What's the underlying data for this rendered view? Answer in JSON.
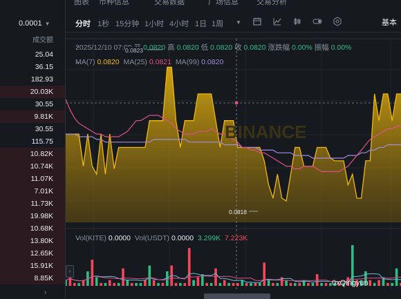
{
  "left_panel": {
    "price_select": "0.0001",
    "column_header": "成交额",
    "volumes": [
      {
        "v": "25.04",
        "red": false
      },
      {
        "v": "36.15",
        "red": false
      },
      {
        "v": "182.93",
        "red": false
      },
      {
        "v": "20.03K",
        "red": true
      },
      {
        "v": "30.55",
        "red": false
      },
      {
        "v": "9.81K",
        "red": true
      },
      {
        "v": "30.55",
        "red": false
      },
      {
        "v": "115.75",
        "red": false
      },
      {
        "v": "10.82K",
        "red": true
      },
      {
        "v": "10.74K",
        "red": true
      },
      {
        "v": "11.07K",
        "red": true
      },
      {
        "v": "7.01K",
        "red": true
      },
      {
        "v": "11.73K",
        "red": true
      },
      {
        "v": "19.98K",
        "red": true
      },
      {
        "v": "10.68K",
        "red": true
      },
      {
        "v": "13.80K",
        "red": true
      },
      {
        "v": "12.65K",
        "red": true
      },
      {
        "v": "15.91K",
        "red": true
      },
      {
        "v": "8.85K",
        "red": true
      }
    ]
  },
  "timeframes": [
    "分时",
    "1秒",
    "15分钟",
    "1小时",
    "4小时",
    "1日",
    "1周"
  ],
  "basic_label": "基本",
  "ohlc": {
    "datetime": "2025/12/10 07:09",
    "open_label": "开",
    "open": "0.0820",
    "high_label": "高",
    "high": "0.0820",
    "low_label": "低",
    "low": "0.0820",
    "close_label": "收",
    "close": "0.0820",
    "change_label": "涨跌幅",
    "change": "0.00%",
    "amp_label": "振幅",
    "amp": "0.00%"
  },
  "ma": {
    "ma7_label": "MA(7)",
    "ma7": "0.0820",
    "ma25_label": "MA(25)",
    "ma25": "0.0821",
    "ma99_label": "MA(99)",
    "ma99": "0.0820"
  },
  "high_marker": "0.0823",
  "low_marker": "0.0818",
  "volume": {
    "kite_label": "Vol(KITE)",
    "kite": "0.0000",
    "usdt_label": "Vol(USDT)",
    "usdt": "0.0000",
    "ma_a": "3.299K",
    "ma_b": "7.223K"
  },
  "watermark": "0xQingyun",
  "colors": {
    "accent": "#f0b90b",
    "up": "#2ebd85",
    "down": "#f6465d",
    "ma25": "#e04f8a",
    "ma99": "#a48bdc"
  },
  "chart_data": {
    "type": "area",
    "close": [
      0.08205,
      0.08205,
      0.08205,
      0.08205,
      0.08193,
      0.08205,
      0.08193,
      0.0819,
      0.08205,
      0.0819,
      0.08205,
      0.08192,
      0.082,
      0.082,
      0.082,
      0.082,
      0.082,
      0.082,
      0.082,
      0.0821,
      0.0821,
      0.0821,
      0.0821,
      0.0823,
      0.0823,
      0.0821,
      0.082,
      0.0821,
      0.0821,
      0.0821,
      0.0822,
      0.0822,
      0.0822,
      0.0822,
      0.0821,
      0.082,
      0.0821,
      0.0821,
      0.0821,
      0.082,
      0.082,
      0.082,
      0.082,
      0.082,
      0.082,
      0.08195,
      0.08186,
      0.08181,
      0.0819,
      0.08181,
      0.0818,
      0.0819,
      0.082,
      0.082,
      0.08193,
      0.08193,
      0.08193,
      0.082,
      0.082,
      0.082,
      0.08196,
      0.08195,
      0.08195,
      0.08195,
      0.08186,
      0.0819,
      0.08181,
      0.08181,
      0.08195,
      0.08195,
      0.0822,
      0.0821,
      0.0822,
      0.0822,
      0.0821,
      0.0822,
      0.0822
    ],
    "ma25": [
      0.08218,
      0.08214,
      0.08211,
      0.08209,
      0.08208,
      0.08207,
      0.08206,
      0.08205,
      0.08205,
      0.08204,
      0.08204,
      0.08204,
      0.08204,
      0.08205,
      0.08206,
      0.08208,
      0.0821,
      0.0821,
      0.08211,
      0.08212,
      0.08212,
      0.08212,
      0.08211,
      0.0821,
      0.08209,
      0.08207,
      0.08206,
      0.08205,
      0.08205,
      0.08205,
      0.08206,
      0.08206,
      0.08206,
      0.08207,
      0.08206,
      0.08205,
      0.08205,
      0.08204,
      0.08203,
      0.08202,
      0.082,
      0.082,
      0.08199,
      0.08199,
      0.08198,
      0.08198,
      0.08197,
      0.08196,
      0.08195,
      0.08194,
      0.08193,
      0.08193,
      0.08192,
      0.08192,
      0.08193,
      0.08193,
      0.08193,
      0.08192,
      0.08191,
      0.08191,
      0.08191,
      0.08191,
      0.08191,
      0.08192,
      0.08193,
      0.08195,
      0.08197,
      0.08199,
      0.08201,
      0.08203,
      0.08204,
      0.08205,
      0.08206,
      0.08207,
      0.08207,
      0.08208,
      0.08208
    ],
    "ma99": [
      0.08205,
      0.08205,
      0.08205,
      0.08204,
      0.08204,
      0.08204,
      0.08204,
      0.08203,
      0.08203,
      0.08202,
      0.08202,
      0.08202,
      0.08202,
      0.08202,
      0.08202,
      0.08202,
      0.08202,
      0.08202,
      0.08202,
      0.08202,
      0.08203,
      0.08203,
      0.08203,
      0.08203,
      0.08203,
      0.08203,
      0.08203,
      0.08203,
      0.08202,
      0.08202,
      0.08202,
      0.08202,
      0.08202,
      0.08202,
      0.08202,
      0.08202,
      0.08201,
      0.08201,
      0.08201,
      0.08201,
      0.082,
      0.082,
      0.082,
      0.082,
      0.08199,
      0.08199,
      0.08199,
      0.08199,
      0.08198,
      0.08198,
      0.08198,
      0.08198,
      0.08197,
      0.08197,
      0.08197,
      0.08197,
      0.08196,
      0.08196,
      0.08196,
      0.08196,
      0.08196,
      0.08196,
      0.08196,
      0.08196,
      0.08197,
      0.08197,
      0.08197,
      0.08198,
      0.08198,
      0.08199,
      0.08199,
      0.082,
      0.082,
      0.08201,
      0.08201,
      0.08201,
      0.08201
    ],
    "volume": [
      2,
      3,
      1,
      1,
      2,
      5,
      9,
      3,
      1,
      1,
      2,
      1,
      1,
      6,
      2,
      1,
      1,
      1,
      2,
      7,
      2,
      1,
      1,
      5,
      7,
      1,
      1,
      1,
      13,
      2,
      3,
      4,
      1,
      1,
      6,
      1,
      2,
      1,
      1,
      1,
      2,
      1,
      1,
      1,
      1,
      8,
      2,
      1,
      1,
      3,
      2,
      1,
      1,
      1,
      2,
      1,
      1,
      4,
      1,
      1,
      1,
      1,
      1,
      1,
      3,
      14,
      2,
      2,
      5,
      2,
      1,
      2,
      3,
      1,
      1,
      6,
      1
    ],
    "volume_up": [
      true,
      false,
      false,
      true,
      false,
      true,
      false,
      true,
      false,
      true,
      false,
      false,
      true,
      false,
      true,
      false,
      true,
      true,
      false,
      true,
      false,
      true,
      false,
      true,
      false,
      false,
      true,
      false,
      false,
      true,
      false,
      true,
      false,
      true,
      false,
      true,
      false,
      true,
      false,
      false,
      true,
      false,
      true,
      false,
      true,
      false,
      true,
      false,
      true,
      false,
      true,
      false,
      true,
      false,
      true,
      false,
      true,
      false,
      true,
      false,
      true,
      true,
      false,
      true,
      false,
      true,
      false,
      true,
      true,
      false,
      true,
      false,
      true,
      false,
      true,
      true,
      false
    ],
    "ylim": [
      0.08172,
      0.08236
    ]
  }
}
